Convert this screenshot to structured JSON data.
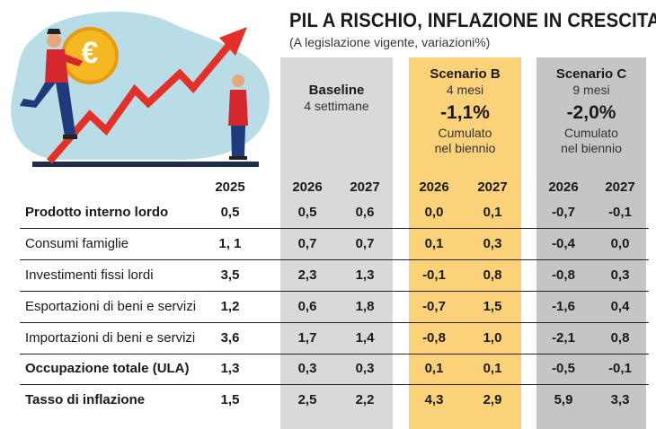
{
  "title": "PIL A RISCHIO, INFLAZIONE IN CRESCITA",
  "subtitle": "(A legislazione vigente, variazioni%)",
  "colors": {
    "baseline_bg": "#d9d9d9",
    "scenario_b_bg": "#fbd27a",
    "scenario_c_bg": "#c5c5c5",
    "arrow": "#e5302a",
    "blob": "#b8dde6"
  },
  "illustration": {
    "coin_symbol": "€"
  },
  "columns": {
    "baseline": {
      "name": "Baseline",
      "duration": "4 settimane"
    },
    "scenario_b": {
      "name": "Scenario B",
      "duration": "4 mesi",
      "cumulative": "-1,1%",
      "note_line1": "Cumulato",
      "note_line2": "nel biennio"
    },
    "scenario_c": {
      "name": "Scenario C",
      "duration": "9 mesi",
      "cumulative": "-2,0%",
      "note_line1": "Cumulato",
      "note_line2": "nel biennio"
    }
  },
  "years": [
    "2025",
    "2026",
    "2027",
    "2026",
    "2027",
    "2026",
    "2027"
  ],
  "rows": [
    {
      "label": "Prodotto interno lordo",
      "bold": true,
      "values": [
        "0,5",
        "0,5",
        "0,6",
        "0,0",
        "0,1",
        "-0,7",
        "-0,1"
      ]
    },
    {
      "label": "Consumi famiglie",
      "bold": false,
      "values": [
        "1, 1",
        "0,7",
        "0,7",
        "0,1",
        "0,3",
        "-0,4",
        "0,0"
      ]
    },
    {
      "label": "Investimenti fissi lordi",
      "bold": false,
      "values": [
        "3,5",
        "2,3",
        "1,3",
        "-0,1",
        "0,8",
        "-0,8",
        "0,3"
      ]
    },
    {
      "label": "Esportazioni di beni e servizi",
      "bold": false,
      "values": [
        "1,2",
        "0,6",
        "1,8",
        "-0,7",
        "1,5",
        "-1,6",
        "0,4"
      ]
    },
    {
      "label": "Importazioni di beni e servizi",
      "bold": false,
      "values": [
        "3,6",
        "1,7",
        "1,4",
        "-0,8",
        "1,0",
        "-2,1",
        "0,8"
      ]
    },
    {
      "label": "Occupazione totale (ULA)",
      "bold": true,
      "values": [
        "1,3",
        "0,3",
        "0,3",
        "0,1",
        "0,1",
        "-0,5",
        "-0,1"
      ]
    },
    {
      "label": "Tasso di inflazione",
      "bold": true,
      "values": [
        "1,5",
        "2,5",
        "2,2",
        "4,3",
        "2,9",
        "5,9",
        "3,3"
      ]
    }
  ]
}
